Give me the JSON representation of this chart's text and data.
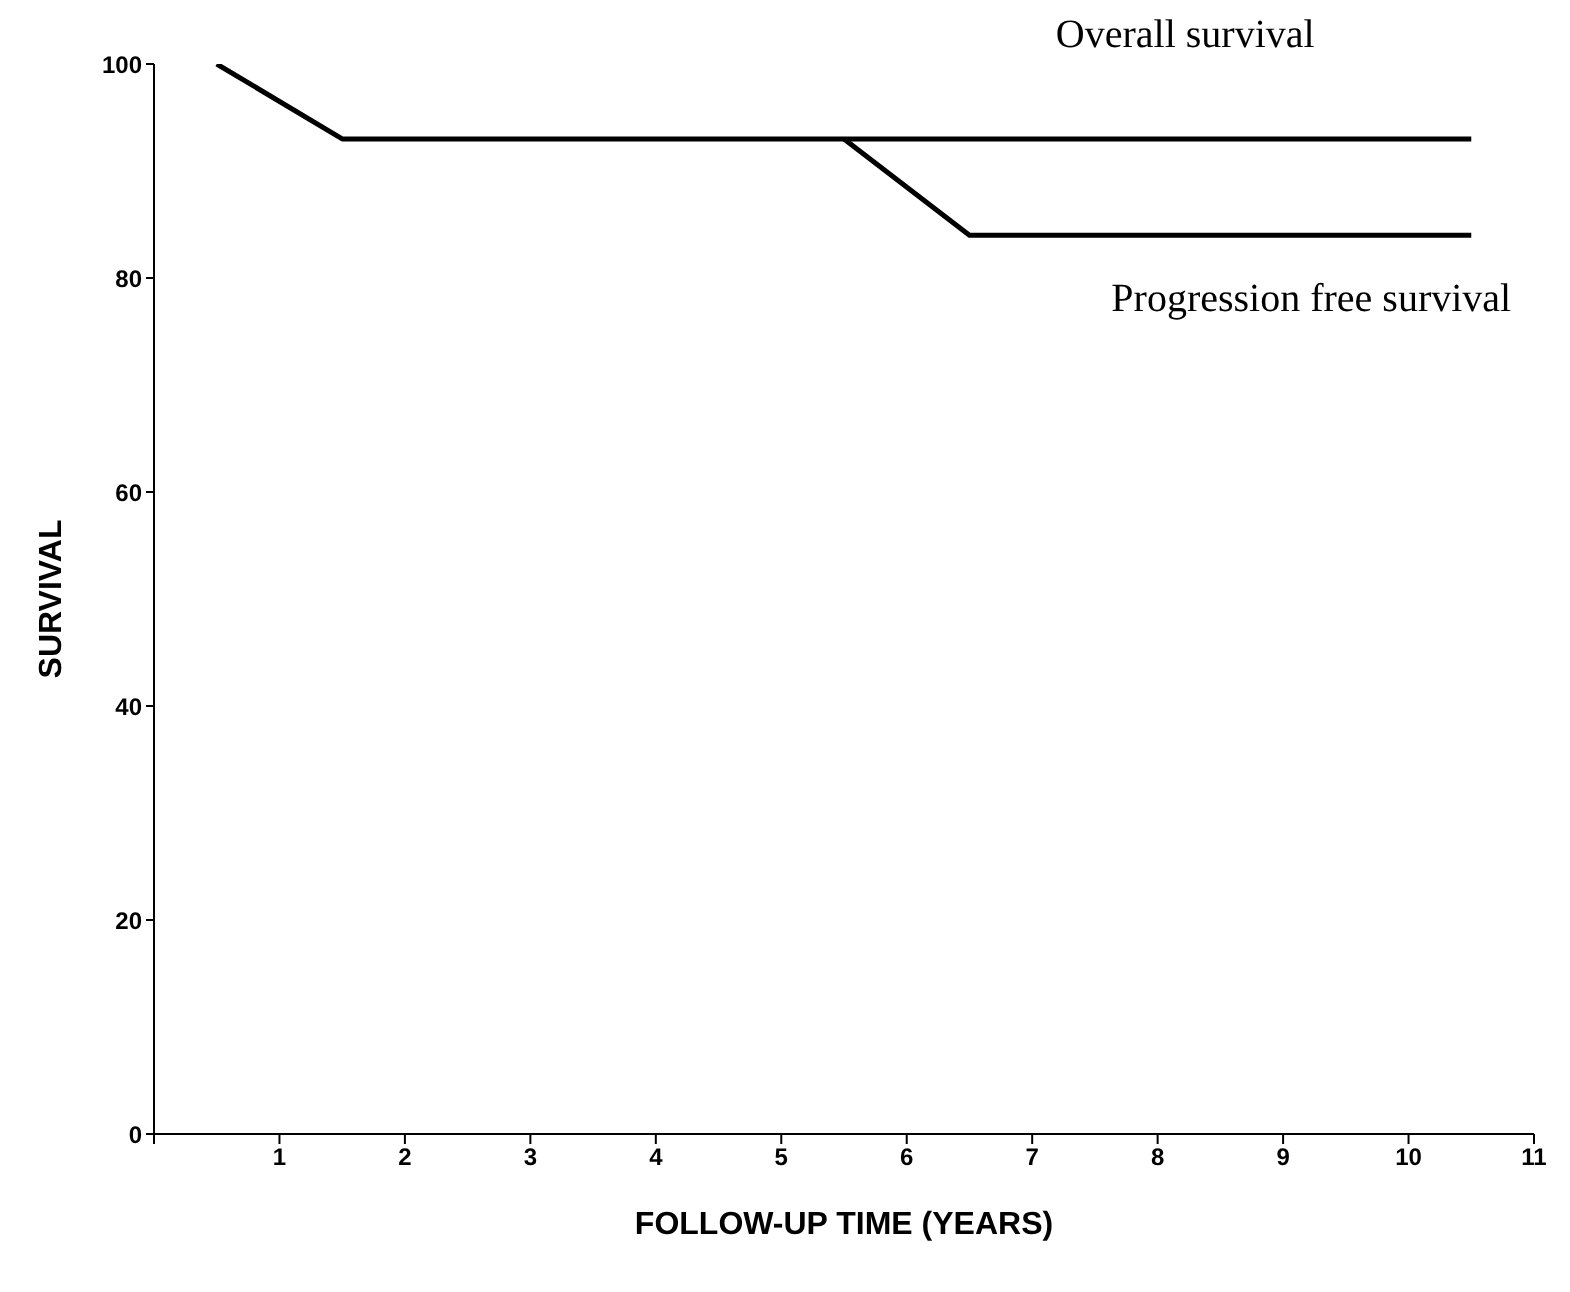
{
  "chart_data": {
    "type": "line",
    "xlabel": "FOLLOW-UP TIME (YEARS)",
    "ylabel": "SURVIVAL",
    "xlim": [
      0,
      11
    ],
    "xticks": [
      {
        "value": 0,
        "label": null
      },
      1,
      2,
      3,
      4,
      5,
      6,
      7,
      8,
      9,
      10,
      11
    ],
    "ylim": [
      0,
      100
    ],
    "yticks": [
      0,
      20,
      40,
      60,
      80,
      100
    ],
    "grid": false,
    "legend": false,
    "marker": "none",
    "line_style": "solid",
    "series": [
      {
        "name": "Overall survival",
        "color": "#000000",
        "x": [
          0.5,
          1.5,
          2.5,
          3.5,
          4.5,
          5.5,
          6.5,
          7.5,
          8.5,
          9.5,
          10.5
        ],
        "values": [
          100,
          93,
          93,
          93,
          93,
          93,
          93,
          93,
          93,
          93,
          93
        ]
      },
      {
        "name": "Progression free survival",
        "color": "#000000",
        "x": [
          5.5,
          6.5,
          7.5,
          8.5,
          9.5,
          10.5
        ],
        "values": [
          93,
          84,
          84,
          84,
          84,
          84
        ]
      }
    ]
  }
}
